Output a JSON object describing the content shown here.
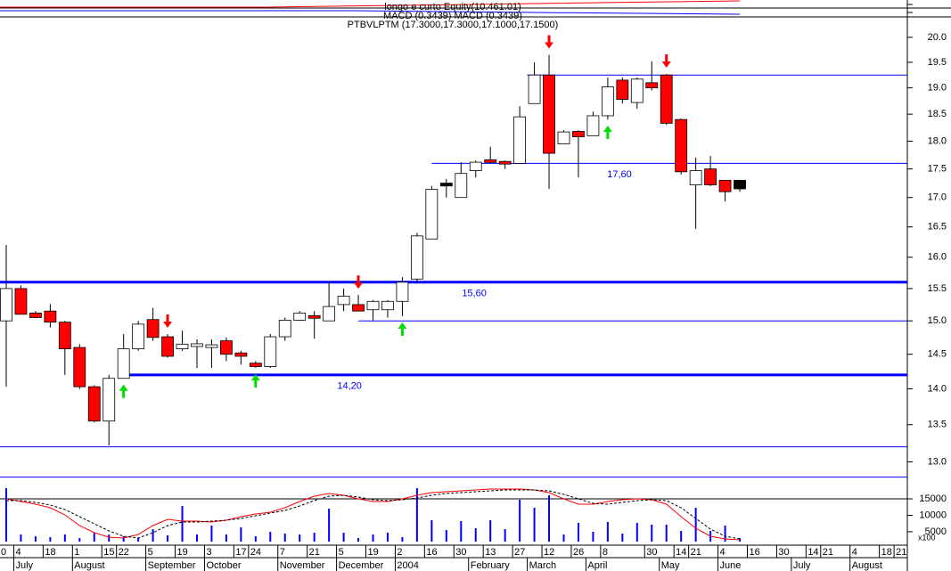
{
  "chart_data": [
    {
      "type": "candlestick",
      "header_lines": [
        "longo e curto Equity(10.461.01)",
        "MACD (0.3439) MACD (0.3439)"
      ],
      "title": "PTBVLPTM (17.3000,17.3000,17.1000,17.1500)",
      "log_scale": true,
      "ylim": [
        12.75,
        20.4
      ],
      "yticks": [
        {
          "value": 13,
          "label": "13.0"
        },
        {
          "value": 13.5,
          "label": "13.5"
        },
        {
          "value": 14,
          "label": "14.0"
        },
        {
          "value": 14.5,
          "label": "14.5"
        },
        {
          "value": 15,
          "label": "15.0"
        },
        {
          "value": 15.5,
          "label": "15.5"
        },
        {
          "value": 16,
          "label": "16.0"
        },
        {
          "value": 16.5,
          "label": "16.5"
        },
        {
          "value": 17,
          "label": "17.0"
        },
        {
          "value": 17.5,
          "label": "17.5"
        },
        {
          "value": 18,
          "label": "18.0"
        },
        {
          "value": 18.5,
          "label": "18.5"
        },
        {
          "value": 19,
          "label": "19.0"
        },
        {
          "value": 19.5,
          "label": "19.5"
        },
        {
          "value": 20,
          "label": "20.0"
        }
      ],
      "xlim": [
        -0.425,
        61.42
      ],
      "open": [
        15.0,
        15.5,
        15.12,
        15.15,
        14.98,
        14.6,
        14.03,
        13.55,
        14.15,
        14.58,
        15.02,
        14.76,
        14.58,
        14.62,
        14.6,
        14.7,
        14.52,
        14.37,
        14.32,
        14.76,
        15.01,
        15.08,
        15.0,
        15.25,
        15.25,
        15.17,
        15.17,
        15.3,
        15.65,
        16.3,
        17.25,
        17.0,
        17.47,
        17.66,
        17.62,
        17.6,
        18.7,
        19.25,
        17.95,
        18.18,
        18.1,
        18.47,
        19.15,
        18.72,
        19.1,
        19.25,
        18.4,
        17.22,
        17.5,
        17.3,
        17.3
      ],
      "high": [
        16.2,
        15.55,
        15.15,
        15.26,
        15.0,
        14.65,
        14.05,
        14.2,
        14.8,
        15.0,
        15.2,
        14.8,
        14.85,
        14.72,
        14.72,
        14.75,
        14.55,
        14.4,
        14.8,
        15.05,
        15.15,
        15.15,
        15.6,
        15.5,
        15.4,
        15.32,
        15.32,
        15.68,
        16.4,
        17.2,
        17.32,
        17.62,
        17.65,
        17.9,
        17.65,
        18.65,
        19.5,
        19.65,
        18.2,
        18.2,
        18.55,
        19.2,
        19.2,
        19.2,
        19.52,
        19.27,
        18.42,
        17.7,
        17.73,
        17.3,
        17.3
      ],
      "low": [
        14.03,
        15.1,
        15.05,
        14.9,
        14.2,
        14.0,
        13.53,
        13.22,
        14.15,
        14.55,
        14.7,
        14.45,
        14.55,
        14.3,
        14.3,
        14.4,
        14.35,
        14.3,
        14.3,
        14.7,
        15.0,
        14.73,
        15.0,
        15.15,
        15.15,
        15.0,
        15.05,
        15.07,
        15.6,
        16.3,
        17.0,
        17.0,
        17.35,
        17.6,
        17.5,
        17.6,
        18.7,
        17.15,
        17.95,
        17.35,
        18.1,
        18.4,
        18.7,
        18.6,
        18.95,
        18.3,
        17.4,
        16.47,
        17.2,
        16.93,
        17.1
      ],
      "close": [
        15.5,
        15.1,
        15.05,
        14.98,
        14.58,
        14.03,
        13.55,
        14.15,
        14.58,
        14.95,
        14.75,
        14.47,
        14.65,
        14.65,
        14.64,
        14.5,
        14.47,
        14.32,
        14.76,
        15.01,
        15.12,
        15.04,
        15.22,
        15.38,
        15.15,
        15.3,
        15.3,
        15.6,
        16.35,
        17.14,
        17.2,
        17.42,
        17.62,
        17.62,
        17.6,
        18.45,
        19.25,
        17.78,
        18.17,
        18.08,
        18.47,
        19.02,
        18.78,
        19.17,
        19.0,
        18.33,
        17.45,
        17.47,
        17.22,
        17.1,
        17.15
      ],
      "colors": [
        "#ffffff",
        "#ff0000",
        "#ff0000",
        "#ff0000",
        "#ff0000",
        "#ff0000",
        "#ff0000",
        "#ffffff",
        "#ffffff",
        "#ffffff",
        "#ff0000",
        "#ff0000",
        "#ffffff",
        "#ffffff",
        "#ffffff",
        "#ff0000",
        "#ff0000",
        "#ff0000",
        "#ffffff",
        "#ffffff",
        "#ffffff",
        "#ff0000",
        "#ffffff",
        "#ffffff",
        "#ff0000",
        "#ffffff",
        "#ffffff",
        "#ffffff",
        "#ffffff",
        "#ffffff",
        "#000000",
        "#ffffff",
        "#ffffff",
        "#ff0000",
        "#ff0000",
        "#ffffff",
        "#ffffff",
        "#ff0000",
        "#ffffff",
        "#ff0000",
        "#ffffff",
        "#ffffff",
        "#ff0000",
        "#ffffff",
        "#ff0000",
        "#ff0000",
        "#ff0000",
        "#ffffff",
        "#ff0000",
        "#ff0000",
        "#000000"
      ],
      "level_color": "#0000ff",
      "levels": [
        {
          "value": 19.25,
          "from": 35.5
        },
        {
          "value": 17.6,
          "from": 29,
          "label": "17,60"
        },
        {
          "value": 15.6,
          "thick": true,
          "label": "15,60"
        },
        {
          "value": 15.0,
          "from": 24
        },
        {
          "value": 14.2,
          "from": 8,
          "thick": true,
          "label": "14,20"
        },
        {
          "value": 13.2
        },
        {
          "value": 12.8
        }
      ],
      "sell_signals": [
        11,
        24,
        37,
        45
      ],
      "buy_signals": [
        8,
        17,
        27,
        41
      ],
      "sell_color": "#ff0000",
      "buy_color": "#00dd00"
    },
    {
      "type": "bar",
      "ylim": [
        2000,
        18800
      ],
      "yticks": [
        5000,
        10000,
        15000
      ],
      "reference": 15000,
      "unit_label": "x100",
      "color": "#0000ff",
      "xlim": [
        -0.425,
        61.42
      ],
      "values": [
        18250,
        4170,
        3630,
        3350,
        4170,
        3080,
        4710,
        4170,
        3630,
        3080,
        5790,
        3900,
        12830,
        4170,
        6880,
        4170,
        6330,
        3630,
        4980,
        4440,
        4170,
        4710,
        12020,
        4710,
        3080,
        4170,
        4710,
        3350,
        18250,
        8500,
        5520,
        8230,
        6060,
        8500,
        5790,
        14730,
        12290,
        16080,
        4170,
        7690,
        4980,
        7960,
        4440,
        7690,
        7150,
        7150,
        5250,
        12290,
        5250,
        6880,
        3080
      ],
      "lines": [
        {
          "color": "#ff0000",
          "values": [
            15000,
            14190,
            13380,
            12290,
            10130,
            6880,
            4710,
            3350,
            3080,
            4170,
            6880,
            8770,
            8230,
            8230,
            7960,
            8500,
            9580,
            10400,
            10940,
            12290,
            14190,
            15810,
            16630,
            16080,
            15000,
            14190,
            14190,
            15000,
            16080,
            16900,
            17170,
            17440,
            17710,
            17980,
            17980,
            17980,
            17710,
            16900,
            15000,
            13380,
            13380,
            14190,
            14730,
            15000,
            14730,
            13380,
            9580,
            6060,
            3630,
            2810,
            2540
          ]
        },
        {
          "color": "#000000",
          "dashed": true,
          "values": [
            14460,
            14460,
            13920,
            13110,
            11750,
            9580,
            7420,
            5250,
            3630,
            3080,
            4710,
            6880,
            7960,
            7960,
            8230,
            8500,
            9040,
            9860,
            10670,
            11480,
            12830,
            14460,
            15810,
            16080,
            15540,
            14730,
            14460,
            14730,
            15270,
            16080,
            16630,
            16900,
            17170,
            17440,
            17710,
            17710,
            17710,
            17440,
            16360,
            15000,
            13650,
            13380,
            13920,
            14460,
            14730,
            14460,
            12290,
            9040,
            5790,
            3630,
            2810
          ]
        }
      ],
      "xticks": [
        {
          "value": 0,
          "label": "0"
        },
        {
          "value": 1,
          "label": "4"
        },
        {
          "value": 3,
          "label": "18"
        },
        {
          "value": 5,
          "label": "1"
        },
        {
          "value": 7,
          "label": "15"
        },
        {
          "value": 8,
          "label": "22"
        },
        {
          "value": 10,
          "label": "5"
        },
        {
          "value": 12,
          "label": "19"
        },
        {
          "value": 14,
          "label": "3"
        },
        {
          "value": 16,
          "label": "17"
        },
        {
          "value": 17,
          "label": "24"
        },
        {
          "value": 19,
          "label": "7"
        },
        {
          "value": 21,
          "label": "21"
        },
        {
          "value": 23,
          "label": "5"
        },
        {
          "value": 25,
          "label": "19"
        },
        {
          "value": 27,
          "label": "2"
        },
        {
          "value": 29,
          "label": "16"
        },
        {
          "value": 31,
          "label": "30"
        },
        {
          "value": 33,
          "label": "13"
        },
        {
          "value": 35,
          "label": "27"
        },
        {
          "value": 37,
          "label": "12"
        },
        {
          "value": 39,
          "label": "26"
        },
        {
          "value": 41,
          "label": "8"
        },
        {
          "value": 44,
          "label": "30"
        },
        {
          "value": 46,
          "label": "14"
        },
        {
          "value": 47,
          "label": "21"
        },
        {
          "value": 49,
          "label": "4"
        },
        {
          "value": 51,
          "label": "16"
        },
        {
          "value": 53,
          "label": "30"
        },
        {
          "value": 55,
          "label": "14"
        },
        {
          "value": 56,
          "label": "21"
        },
        {
          "value": 58,
          "label": "4"
        },
        {
          "value": 60,
          "label": "18"
        },
        {
          "value": 61,
          "label": "21"
        }
      ],
      "month_ticks": [
        {
          "value": 1,
          "label": "July"
        },
        {
          "value": 5,
          "label": "August"
        },
        {
          "value": 10,
          "label": "September"
        },
        {
          "value": 14,
          "label": "October"
        },
        {
          "value": 19,
          "label": "November"
        },
        {
          "value": 23,
          "label": "December"
        },
        {
          "value": 27,
          "label": "2004"
        },
        {
          "value": 32,
          "label": "February"
        },
        {
          "value": 36,
          "label": "March"
        },
        {
          "value": 40,
          "label": "April"
        },
        {
          "value": 45,
          "label": "May"
        },
        {
          "value": 49,
          "label": "June"
        },
        {
          "value": 54,
          "label": "July"
        },
        {
          "value": 58,
          "label": "August"
        }
      ]
    }
  ]
}
